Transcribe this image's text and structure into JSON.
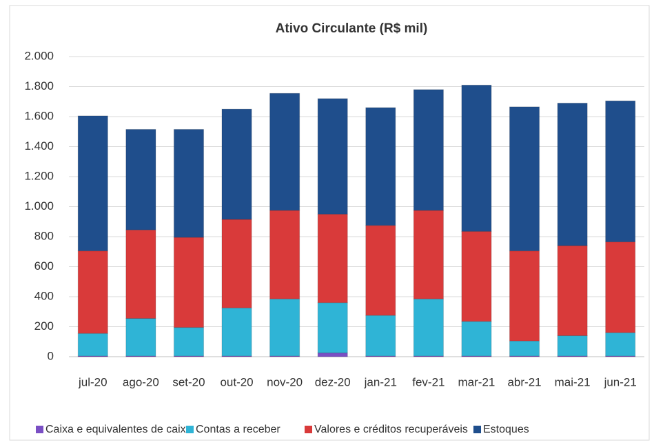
{
  "chart_data": {
    "type": "bar",
    "stacked": true,
    "title": "Ativo Circulante  (R$ mil)",
    "categories": [
      "jul-20",
      "ago-20",
      "set-20",
      "out-20",
      "nov-20",
      "dez-20",
      "jan-21",
      "fev-21",
      "mar-21",
      "abr-21",
      "mai-21",
      "jun-21"
    ],
    "series": [
      {
        "name": "Caixa e equivalentes de caixa",
        "color": "#7a4fc4",
        "values": [
          5,
          5,
          5,
          5,
          5,
          25,
          5,
          5,
          5,
          5,
          5,
          5
        ]
      },
      {
        "name": "Contas a receber",
        "color": "#2fb4d6",
        "values": [
          150,
          250,
          190,
          320,
          380,
          335,
          270,
          380,
          230,
          100,
          135,
          155
        ]
      },
      {
        "name": "Valores e créditos recuperáveis",
        "color": "#d93a3a",
        "values": [
          550,
          590,
          600,
          590,
          590,
          590,
          600,
          590,
          600,
          600,
          600,
          605
        ]
      },
      {
        "name": "Estoques",
        "color": "#1f4e8c",
        "values": [
          900,
          670,
          720,
          735,
          780,
          770,
          785,
          805,
          975,
          960,
          950,
          940
        ]
      }
    ],
    "ylim": [
      0,
      2000
    ],
    "yticks": [
      0,
      200,
      400,
      600,
      800,
      {
        "value": 1000,
        "label": "1.000"
      },
      {
        "value": 1200,
        "label": "1.200"
      },
      {
        "value": 1400,
        "label": "1.400"
      },
      {
        "value": 1600,
        "label": "1.600"
      },
      {
        "value": 1800,
        "label": "1.800"
      },
      {
        "value": 2000,
        "label": "2.000"
      }
    ],
    "grid": true,
    "legend": "bottom"
  }
}
